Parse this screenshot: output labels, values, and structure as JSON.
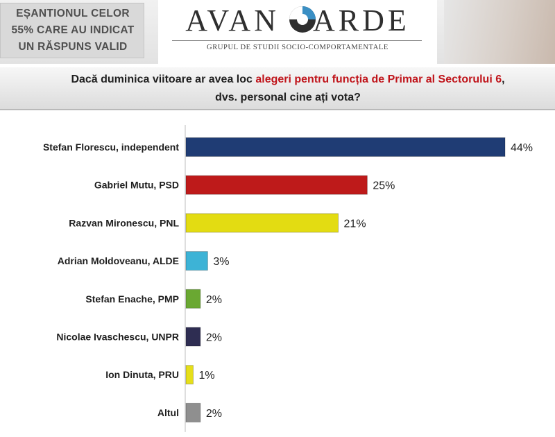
{
  "header": {
    "sample_lines": [
      "EȘANTIONUL CELOR",
      "55% CARE AU INDICAT",
      "UN RĂSPUNS VALID"
    ],
    "logo_left": "AVAN",
    "logo_right": "ARDE",
    "logo_subtitle": "GRUPUL DE STUDII SOCIO-COMPORTAMENTALE"
  },
  "question": {
    "line1_prefix": "Dacă duminica viitoare ar avea loc ",
    "line1_highlight": "alegeri pentru funcția de Primar al Sectorului 6",
    "line1_suffix": ",",
    "line2": "dvs. personal cine ați vota?"
  },
  "chart_data": {
    "type": "bar",
    "orientation": "horizontal",
    "title": "",
    "xlabel": "",
    "ylabel": "",
    "xlim": [
      0,
      44
    ],
    "grid": false,
    "legend": "none",
    "categories": [
      "Stefan Florescu, independent",
      "Gabriel Mutu, PSD",
      "Razvan Mironescu, PNL",
      "Adrian Moldoveanu, ALDE",
      "Stefan Enache, PMP",
      "Nicolae Ivaschescu, UNPR",
      "Ion Dinuta, PRU",
      "Altul"
    ],
    "values": [
      44,
      25,
      21,
      3,
      2,
      2,
      1,
      2
    ],
    "value_labels": [
      "44%",
      "25%",
      "21%",
      "3%",
      "2%",
      "2%",
      "1%",
      "2%"
    ],
    "colors": [
      "#1f3c74",
      "#be1a1a",
      "#e3dc12",
      "#3db3d6",
      "#6aa832",
      "#2e2d52",
      "#e6df1a",
      "#8f8f8f"
    ]
  }
}
